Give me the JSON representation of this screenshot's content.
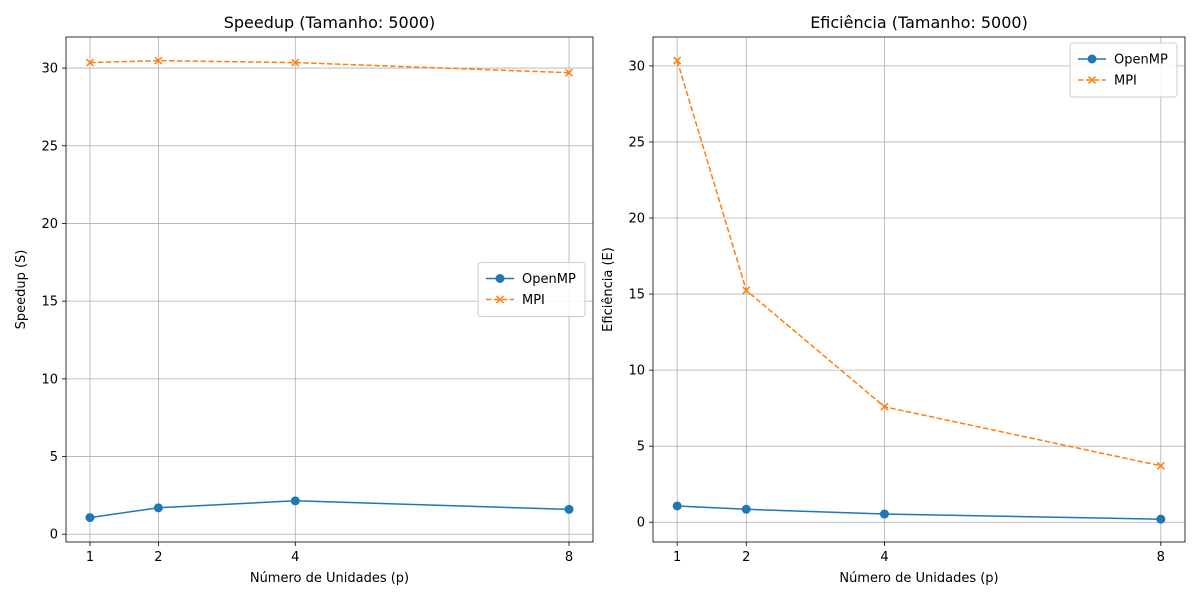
{
  "chart_data": [
    {
      "type": "line",
      "title": "Speedup (Tamanho: 5000)",
      "xlabel": "Número de Unidades (p)",
      "ylabel": "Speedup (S)",
      "x": [
        1,
        2,
        4,
        8
      ],
      "xticks": [
        "1",
        "2",
        "4",
        "8"
      ],
      "yticks": [
        "0",
        "5",
        "10",
        "15",
        "20",
        "25",
        "30"
      ],
      "ylim": [
        -0.5,
        32
      ],
      "xlim": [
        0.65,
        8.35
      ],
      "grid": true,
      "legend_position": "center-right",
      "series": [
        {
          "name": "OpenMP",
          "values": [
            1.07,
            1.7,
            2.15,
            1.6
          ],
          "color": "#1f77b4",
          "marker": "circle",
          "line": "solid"
        },
        {
          "name": "MPI",
          "values": [
            30.35,
            30.48,
            30.35,
            29.7
          ],
          "color": "#ff7f0e",
          "marker": "x",
          "line": "dashed"
        }
      ]
    },
    {
      "type": "line",
      "title": "Eficiência (Tamanho: 5000)",
      "xlabel": "Número de Unidades (p)",
      "ylabel": "Eficiência (E)",
      "x": [
        1,
        2,
        4,
        8
      ],
      "xticks": [
        "1",
        "2",
        "4",
        "8"
      ],
      "yticks": [
        "0",
        "5",
        "10",
        "15",
        "20",
        "25",
        "30"
      ],
      "ylim": [
        -1.3,
        31.9
      ],
      "xlim": [
        0.65,
        8.35
      ],
      "grid": true,
      "legend_position": "top-right",
      "series": [
        {
          "name": "OpenMP",
          "values": [
            1.07,
            0.85,
            0.54,
            0.2
          ],
          "color": "#1f77b4",
          "marker": "circle",
          "line": "solid"
        },
        {
          "name": "MPI",
          "values": [
            30.35,
            15.24,
            7.59,
            3.71
          ],
          "color": "#ff7f0e",
          "marker": "x",
          "line": "dashed"
        }
      ]
    }
  ]
}
